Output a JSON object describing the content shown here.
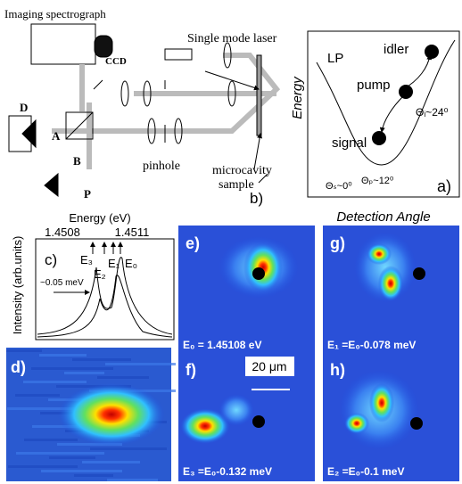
{
  "panel_b": {
    "spectrograph": "Imaging spectrograph",
    "ccd": "CCD",
    "laser": "Single mode laser",
    "d": "D",
    "a": "A",
    "b": "B",
    "p": "P",
    "pinhole": "pinhole",
    "sample": [
      "microcavity",
      "sample"
    ],
    "label": "b)"
  },
  "panel_a": {
    "y_label": "Energy",
    "x_label": "Detection Angle",
    "lp": "LP",
    "idler": "idler",
    "pump": "pump",
    "signal": "signal",
    "theta_i": "Θᵢ~24⁰",
    "theta_s": "Θₛ~0⁰",
    "theta_p": "Θₚ~12⁰",
    "label": "a)"
  },
  "panel_c": {
    "x_label": "Energy (eV)",
    "ticks": [
      "1.4508",
      "1.4511"
    ],
    "y_label": "Intensity (arb.units)",
    "label": "c)",
    "lines": [
      "E₃",
      "E₂",
      "E₁",
      "E₀"
    ],
    "width": "~0.05 meV"
  },
  "panel_d": {
    "label": "d)"
  },
  "panel_e": {
    "label": "e)",
    "caption": "E₀ = 1.45108 eV"
  },
  "panel_g": {
    "label": "g)",
    "caption": "E₁ =E₀-0.078 meV"
  },
  "panel_f": {
    "label": "f)",
    "caption": "E₃ =E₀-0.132 meV",
    "scale": "20 μm"
  },
  "panel_h": {
    "label": "h)",
    "caption": "E₂ =E₀-0.1 meV"
  }
}
